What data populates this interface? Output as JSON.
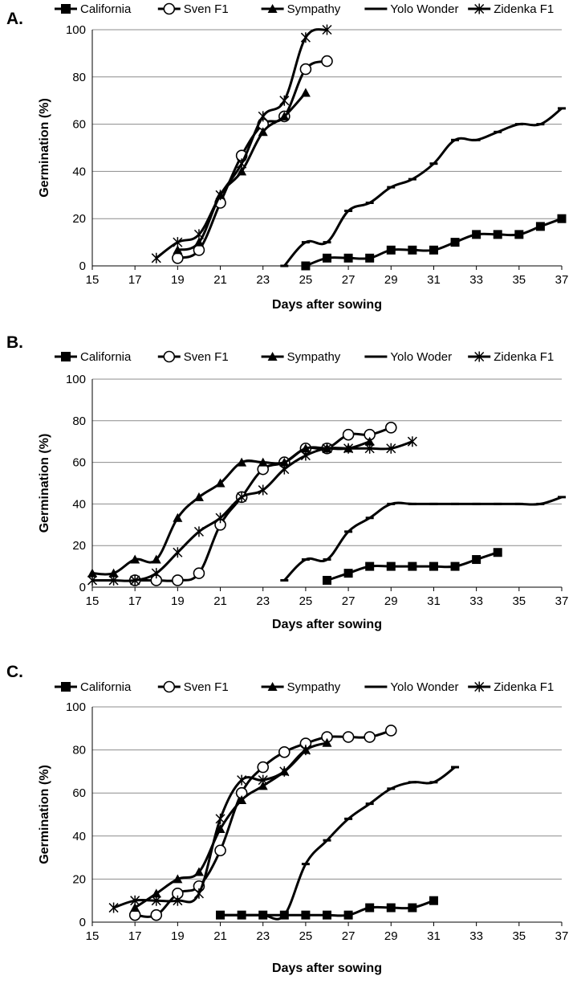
{
  "series_styles": {
    "California": {
      "marker": "square",
      "color": "#000000"
    },
    "Sven F1": {
      "marker": "circle",
      "color": "#000000"
    },
    "Sympathy": {
      "marker": "triangle",
      "color": "#000000"
    },
    "Yolo Wonder": {
      "marker": "dash",
      "color": "#000000"
    },
    "Yolo Woder": {
      "marker": "dash",
      "color": "#000000"
    },
    "Zidenka F1": {
      "marker": "star",
      "color": "#000000"
    }
  },
  "chart_data": [
    {
      "type": "line",
      "panel_label": "A.",
      "xlabel": "Days after sowing",
      "ylabel": "Germination (%)",
      "xlim": [
        15,
        37
      ],
      "ylim": [
        0,
        100
      ],
      "xticks": [
        15,
        17,
        19,
        21,
        23,
        25,
        27,
        29,
        31,
        33,
        35,
        37
      ],
      "yticks": [
        0,
        20,
        40,
        60,
        80,
        100
      ],
      "grid": "horizontal",
      "legend": "top",
      "series": [
        {
          "name": "California",
          "x": [
            25,
            26,
            27,
            28,
            29,
            30,
            31,
            32,
            33,
            34,
            35,
            36,
            37
          ],
          "y": [
            0,
            3.3,
            3.3,
            3.3,
            6.7,
            6.7,
            6.7,
            10,
            13.3,
            13.3,
            13.3,
            16.7,
            20
          ]
        },
        {
          "name": "Sven F1",
          "x": [
            19,
            20,
            21,
            22,
            23,
            24,
            25,
            26
          ],
          "y": [
            3.3,
            6.7,
            26.7,
            46.7,
            60,
            63.3,
            83.3,
            86.7
          ]
        },
        {
          "name": "Sympathy",
          "x": [
            19,
            20,
            21,
            22,
            23,
            24,
            25
          ],
          "y": [
            6.7,
            10,
            30,
            40,
            56.7,
            63.3,
            73.3
          ]
        },
        {
          "name": "Yolo Wonder",
          "x": [
            24,
            25,
            26,
            27,
            28,
            29,
            30,
            31,
            32,
            33,
            34,
            35,
            36,
            37
          ],
          "y": [
            0,
            10,
            10,
            23.3,
            26.7,
            33.3,
            36.7,
            43.3,
            53.3,
            53.3,
            56.7,
            60,
            60,
            66.7
          ]
        },
        {
          "name": "Zidenka F1",
          "x": [
            18,
            19,
            20,
            21,
            22,
            23,
            24,
            25,
            26
          ],
          "y": [
            3.3,
            10,
            13.3,
            30,
            43.3,
            63.3,
            70,
            96.7,
            100
          ]
        }
      ]
    },
    {
      "type": "line",
      "panel_label": "B.",
      "xlabel": "Days after sowing",
      "ylabel": "Germination (%)",
      "xlim": [
        15,
        37
      ],
      "ylim": [
        0,
        100
      ],
      "xticks": [
        15,
        17,
        19,
        21,
        23,
        25,
        27,
        29,
        31,
        33,
        35,
        37
      ],
      "yticks": [
        0,
        20,
        40,
        60,
        80,
        100
      ],
      "grid": "horizontal",
      "legend": "top",
      "series": [
        {
          "name": "California",
          "x": [
            26,
            27,
            28,
            29,
            30,
            31,
            32,
            33,
            34
          ],
          "y": [
            3.3,
            6.7,
            10,
            10,
            10,
            10,
            10,
            13.3,
            16.7
          ]
        },
        {
          "name": "Sven F1",
          "x": [
            17,
            18,
            19,
            20,
            21,
            22,
            23,
            24,
            25,
            26,
            27,
            28,
            29
          ],
          "y": [
            3.3,
            3.3,
            3.3,
            6.7,
            30,
            43.3,
            56.7,
            60,
            66.7,
            66.7,
            73.3,
            73.3,
            76.7
          ]
        },
        {
          "name": "Sympathy",
          "x": [
            15,
            16,
            17,
            18,
            19,
            20,
            21,
            22,
            23,
            24,
            25,
            26,
            27,
            28
          ],
          "y": [
            6.7,
            6.7,
            13.3,
            13.3,
            33.3,
            43.3,
            50,
            60,
            60,
            60,
            66.7,
            66.7,
            66.7,
            70
          ]
        },
        {
          "name": "Yolo Woder",
          "x": [
            24,
            25,
            26,
            27,
            28,
            29,
            30,
            31,
            32,
            33,
            34,
            35,
            36,
            37
          ],
          "y": [
            3.3,
            13.3,
            13.3,
            26.7,
            33.3,
            40,
            40,
            40,
            40,
            40,
            40,
            40,
            40,
            43.3
          ]
        },
        {
          "name": "Zidenka F1",
          "x": [
            15,
            16,
            17,
            18,
            19,
            20,
            21,
            22,
            23,
            24,
            25,
            26,
            27,
            28,
            29,
            30
          ],
          "y": [
            3.3,
            3.3,
            3.3,
            6.7,
            16.7,
            26.7,
            33.3,
            43.3,
            46.7,
            56.7,
            63.3,
            66.7,
            66.7,
            66.7,
            66.7,
            70
          ]
        }
      ]
    },
    {
      "type": "line",
      "panel_label": "C.",
      "xlabel": "Days after sowing",
      "ylabel": "Germination (%)",
      "xlim": [
        15,
        37
      ],
      "ylim": [
        0,
        100
      ],
      "xticks": [
        15,
        17,
        19,
        21,
        23,
        25,
        27,
        29,
        31,
        33,
        35,
        37
      ],
      "yticks": [
        0,
        20,
        40,
        60,
        80,
        100
      ],
      "grid": "horizontal",
      "legend": "top",
      "series": [
        {
          "name": "California",
          "x": [
            21,
            22,
            23,
            24,
            25,
            26,
            27,
            28,
            29,
            30,
            31
          ],
          "y": [
            3.3,
            3.3,
            3.3,
            3.3,
            3.3,
            3.3,
            3.3,
            6.7,
            6.7,
            6.7,
            10
          ]
        },
        {
          "name": "Sven F1",
          "x": [
            17,
            18,
            19,
            20,
            21,
            22,
            23,
            24,
            25,
            26,
            27,
            28,
            29
          ],
          "y": [
            3.3,
            3.3,
            13.3,
            16.7,
            33.3,
            60,
            72,
            79,
            83,
            86,
            86,
            86,
            89
          ]
        },
        {
          "name": "Sympathy",
          "x": [
            17,
            18,
            19,
            20,
            21,
            22,
            23,
            24,
            25,
            26
          ],
          "y": [
            6.7,
            13.3,
            20,
            23.3,
            43.3,
            56.7,
            63.3,
            70,
            80,
            83.3
          ]
        },
        {
          "name": "Yolo Wonder",
          "x": [
            21,
            22,
            23,
            24,
            25,
            26,
            27,
            28,
            29,
            30,
            31,
            32
          ],
          "y": [
            3.3,
            3.3,
            3.3,
            3.3,
            27,
            38,
            48,
            55,
            62,
            65,
            65,
            72
          ]
        },
        {
          "name": "Zidenka F1",
          "x": [
            16,
            17,
            18,
            19,
            20,
            21,
            22,
            23,
            24,
            25
          ],
          "y": [
            6.7,
            10,
            10,
            10,
            13.3,
            48,
            66,
            66,
            70,
            80
          ]
        }
      ]
    }
  ]
}
